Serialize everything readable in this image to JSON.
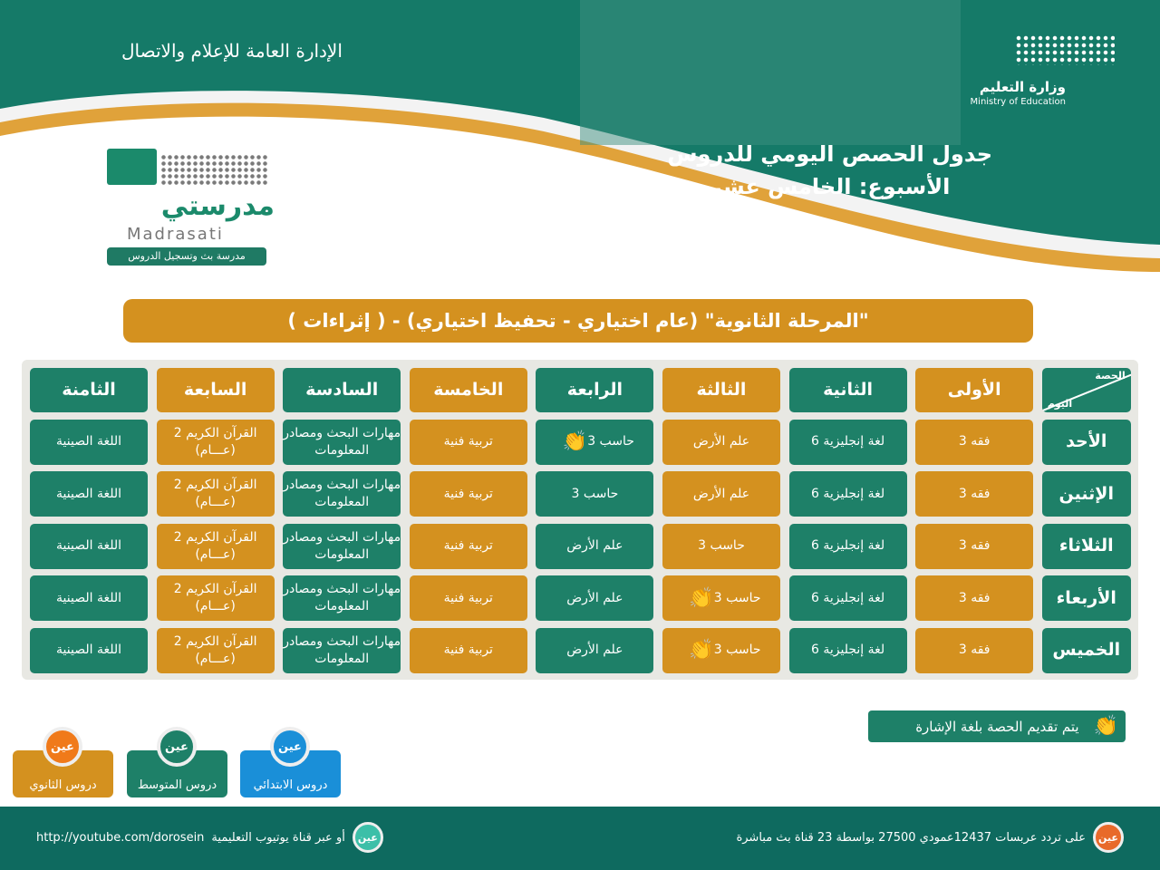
{
  "header": {
    "ministry_ar": "وزارة التعليم",
    "ministry_en": "Ministry of Education",
    "directorate": "الإدارة العامة للإعلام والاتصال",
    "title": "جدول الحصص اليومي للدروس",
    "week": "الأسبوع: الخامس عشر"
  },
  "logo": {
    "name_ar": "مدرستي",
    "name_en": "Madrasati",
    "tagline": "مدرسة بث وتسجيل الدروس"
  },
  "banner": "\"المرحلة الثانوية\" (عام اختياري - تحفيظ اختياري)  -  ( إثراءات )",
  "table": {
    "corner_period": "الحصة",
    "corner_day": "اليوم",
    "periods": [
      "الأولى",
      "الثانية",
      "الثالثة",
      "الرابعة",
      "الخامسة",
      "السادسة",
      "السابعة",
      "الثامنة"
    ],
    "rows": [
      {
        "day": "الأحد",
        "cells": [
          "فقه 3",
          "لغة إنجليزية 6",
          "علم الأرض",
          "حاسب 3",
          "تربية فنية",
          "مهارات البحث ومصادر المعلومات",
          "القرآن الكريم 2 (عـــام)",
          "اللغة الصينية"
        ],
        "sign": [
          3
        ]
      },
      {
        "day": "الإثنين",
        "cells": [
          "فقه 3",
          "لغة إنجليزية 6",
          "علم الأرض",
          "حاسب 3",
          "تربية فنية",
          "مهارات البحث ومصادر المعلومات",
          "القرآن الكريم 2 (عـــام)",
          "اللغة الصينية"
        ],
        "sign": []
      },
      {
        "day": "الثلاثاء",
        "cells": [
          "فقه 3",
          "لغة إنجليزية 6",
          "حاسب 3",
          "علم الأرض",
          "تربية فنية",
          "مهارات البحث ومصادر المعلومات",
          "القرآن الكريم 2 (عـــام)",
          "اللغة الصينية"
        ],
        "sign": []
      },
      {
        "day": "الأربعاء",
        "cells": [
          "فقه 3",
          "لغة إنجليزية 6",
          "حاسب 3",
          "علم الأرض",
          "تربية فنية",
          "مهارات البحث ومصادر المعلومات",
          "القرآن الكريم 2 (عـــام)",
          "اللغة الصينية"
        ],
        "sign": [
          2
        ]
      },
      {
        "day": "الخميس",
        "cells": [
          "فقه 3",
          "لغة إنجليزية 6",
          "حاسب 3",
          "علم الأرض",
          "تربية فنية",
          "مهارات البحث ومصادر المعلومات",
          "القرآن الكريم 2 (عـــام)",
          "اللغة الصينية"
        ],
        "sign": [
          2
        ]
      }
    ]
  },
  "sign_note": "يتم تقديم الحصة بلغة الإشارة",
  "channels": [
    {
      "label": "دروس الابتدائي",
      "badge": "عين",
      "color": "#1a8fd8"
    },
    {
      "label": "دروس المتوسط",
      "badge": "عين",
      "color": "#1e8068"
    },
    {
      "label": "دروس الثانوي",
      "badge": "عين",
      "color": "#d4911f"
    }
  ],
  "footer": {
    "satellite": "على تردد عربسات 12437عمودي 27500 بواسطة 23 قناة بث مباشرة",
    "youtube_text": "أو عبر قناة يوتيوب التعليمية",
    "youtube_url": "http://youtube.com/dorosein",
    "badge": "عين"
  },
  "colors": {
    "green": "#1e8068",
    "orange": "#d4911f",
    "dark_teal": "#0e6a5f"
  }
}
